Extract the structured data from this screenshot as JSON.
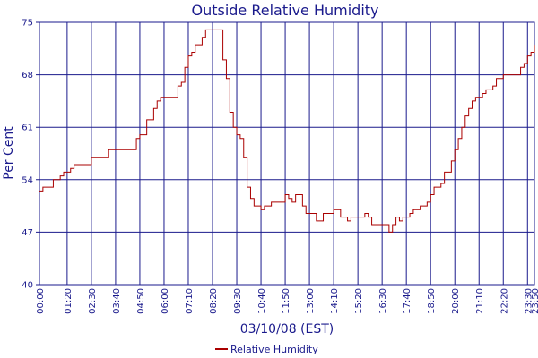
{
  "chart_data": {
    "type": "line",
    "title": "Outside Relative Humidity",
    "xlabel": "03/10/08 (EST)",
    "ylabel": "Per Cent",
    "ylim": [
      40,
      75
    ],
    "y_ticks": [
      "40",
      "47",
      "54",
      "61",
      "68",
      "75"
    ],
    "x_ticks": [
      "00:00",
      "01:20",
      "02:30",
      "03:40",
      "04:50",
      "06:00",
      "07:10",
      "08:20",
      "09:30",
      "10:40",
      "11:50",
      "13:00",
      "14:10",
      "15:20",
      "16:30",
      "17:40",
      "18:50",
      "20:00",
      "21:10",
      "22:20",
      "23:30",
      "23:50"
    ],
    "grid": true,
    "legend_position": "bottom-center",
    "colors": {
      "series": "#aa0000",
      "grid": "#1a1a8c",
      "text": "#1a1a8c"
    },
    "series": [
      {
        "name": "Relative Humidity",
        "points": [
          [
            "00:00",
            52.5
          ],
          [
            "00:10",
            53.0
          ],
          [
            "00:30",
            53.0
          ],
          [
            "00:40",
            54.0
          ],
          [
            "00:50",
            54.0
          ],
          [
            "01:00",
            54.5
          ],
          [
            "01:10",
            55.0
          ],
          [
            "01:30",
            55.5
          ],
          [
            "01:40",
            56.0
          ],
          [
            "02:20",
            56.0
          ],
          [
            "02:30",
            57.0
          ],
          [
            "03:10",
            57.0
          ],
          [
            "03:20",
            58.0
          ],
          [
            "04:20",
            58.0
          ],
          [
            "04:40",
            59.5
          ],
          [
            "04:50",
            60.0
          ],
          [
            "05:10",
            62.0
          ],
          [
            "05:30",
            63.5
          ],
          [
            "05:40",
            64.5
          ],
          [
            "05:50",
            65.0
          ],
          [
            "06:20",
            65.0
          ],
          [
            "06:40",
            66.5
          ],
          [
            "06:50",
            67.0
          ],
          [
            "07:00",
            69.0
          ],
          [
            "07:10",
            70.5
          ],
          [
            "07:20",
            71.0
          ],
          [
            "07:30",
            72.0
          ],
          [
            "07:40",
            72.0
          ],
          [
            "07:50",
            73.0
          ],
          [
            "08:00",
            74.0
          ],
          [
            "08:20",
            74.0
          ],
          [
            "08:30",
            74.0
          ],
          [
            "08:50",
            70.0
          ],
          [
            "09:00",
            67.5
          ],
          [
            "09:10",
            63.0
          ],
          [
            "09:20",
            61.0
          ],
          [
            "09:30",
            60.0
          ],
          [
            "09:40",
            59.5
          ],
          [
            "09:50",
            57.0
          ],
          [
            "10:00",
            53.0
          ],
          [
            "10:10",
            51.5
          ],
          [
            "10:20",
            50.5
          ],
          [
            "10:40",
            50.0
          ],
          [
            "10:50",
            50.5
          ],
          [
            "11:10",
            51.0
          ],
          [
            "11:40",
            51.0
          ],
          [
            "11:50",
            52.0
          ],
          [
            "12:00",
            51.5
          ],
          [
            "12:10",
            51.0
          ],
          [
            "12:20",
            52.0
          ],
          [
            "12:40",
            50.5
          ],
          [
            "12:50",
            49.5
          ],
          [
            "13:10",
            49.5
          ],
          [
            "13:20",
            48.5
          ],
          [
            "13:30",
            48.5
          ],
          [
            "13:40",
            49.5
          ],
          [
            "14:00",
            49.5
          ],
          [
            "14:10",
            50.0
          ],
          [
            "14:20",
            50.0
          ],
          [
            "14:30",
            49.0
          ],
          [
            "14:40",
            49.0
          ],
          [
            "14:50",
            48.5
          ],
          [
            "15:00",
            49.0
          ],
          [
            "15:40",
            49.5
          ],
          [
            "15:50",
            49.0
          ],
          [
            "16:00",
            48.0
          ],
          [
            "16:40",
            48.0
          ],
          [
            "16:50",
            47.0
          ],
          [
            "17:00",
            48.0
          ],
          [
            "17:10",
            49.0
          ],
          [
            "17:20",
            48.5
          ],
          [
            "17:30",
            49.0
          ],
          [
            "17:50",
            49.5
          ],
          [
            "18:00",
            50.0
          ],
          [
            "18:20",
            50.5
          ],
          [
            "18:40",
            51.0
          ],
          [
            "18:50",
            52.0
          ],
          [
            "19:00",
            53.0
          ],
          [
            "19:20",
            53.5
          ],
          [
            "19:30",
            55.0
          ],
          [
            "19:50",
            56.5
          ],
          [
            "20:00",
            58.0
          ],
          [
            "20:10",
            59.5
          ],
          [
            "20:20",
            61.0
          ],
          [
            "20:30",
            62.5
          ],
          [
            "20:40",
            63.5
          ],
          [
            "20:50",
            64.5
          ],
          [
            "21:00",
            65.0
          ],
          [
            "21:20",
            65.5
          ],
          [
            "21:30",
            66.0
          ],
          [
            "21:50",
            66.5
          ],
          [
            "22:00",
            67.5
          ],
          [
            "22:20",
            68.0
          ],
          [
            "23:00",
            68.0
          ],
          [
            "23:10",
            69.0
          ],
          [
            "23:20",
            69.5
          ],
          [
            "23:30",
            70.5
          ],
          [
            "23:40",
            71.0
          ],
          [
            "23:50",
            72.0
          ]
        ]
      }
    ]
  }
}
